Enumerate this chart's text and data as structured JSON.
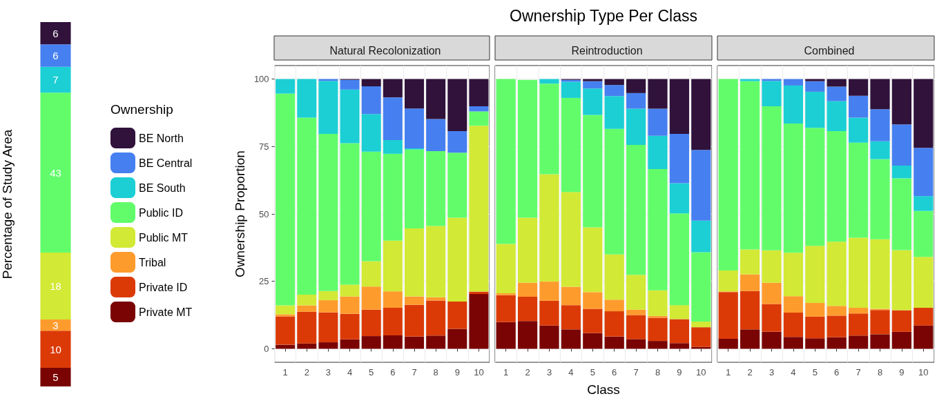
{
  "chart_data": [
    {
      "type": "bar",
      "stacked": true,
      "categories": [
        null
      ],
      "ylabel": "Percentage of Study Area",
      "data_labels": true,
      "tick_labels": false,
      "grid": false,
      "legend": "right",
      "legend_title": "Ownership",
      "series": [
        {
          "name": "Private MT",
          "color": "#7a0403",
          "values": [
            5
          ]
        },
        {
          "name": "Private ID",
          "color": "#db3a07",
          "values": [
            10
          ]
        },
        {
          "name": "Tribal",
          "color": "#fe9b2d",
          "values": [
            3
          ]
        },
        {
          "name": "Public MT",
          "color": "#d2e935",
          "values": [
            18
          ]
        },
        {
          "name": "Public ID",
          "color": "#62fc6b",
          "values": [
            43
          ]
        },
        {
          "name": "BE South",
          "color": "#1bcfd4",
          "values": [
            7
          ]
        },
        {
          "name": "BE Central",
          "color": "#4680f0",
          "values": [
            6
          ]
        },
        {
          "name": "BE North",
          "color": "#30123b",
          "values": [
            6
          ]
        }
      ]
    },
    {
      "type": "bar",
      "stacked": true,
      "subtitle": "Natural Recolonization",
      "ylabel": "Ownership Proportion",
      "categories": [
        "1",
        "2",
        "3",
        "4",
        "5",
        "6",
        "7",
        "8",
        "9",
        "10"
      ],
      "ylim": [
        -5,
        105
      ],
      "yticks": [
        0,
        25,
        50,
        75,
        100
      ],
      "grid": true,
      "series": [
        {
          "color": "#7a0403",
          "values": [
            1.5,
            2.0,
            2.4,
            3.5,
            4.7,
            5.0,
            4.5,
            4.9,
            7.4,
            20.3
          ]
        },
        {
          "color": "#db3a07",
          "values": [
            10.5,
            11.7,
            11.1,
            9.5,
            9.8,
            10.2,
            11.8,
            13.0,
            10.1,
            0.9
          ]
        },
        {
          "color": "#fe9b2d",
          "values": [
            0.8,
            2.4,
            4.5,
            6.4,
            8.6,
            6.1,
            3.1,
            1.2,
            0,
            0
          ]
        },
        {
          "color": "#d2e935",
          "values": [
            3.3,
            4.0,
            3.4,
            4.4,
            9.4,
            18.8,
            25.2,
            26.4,
            31.1,
            61.5
          ]
        },
        {
          "color": "#62fc6b",
          "values": [
            78.5,
            65.6,
            58.3,
            52.4,
            40.6,
            32.2,
            29.3,
            27.8,
            24.1,
            5.3
          ]
        },
        {
          "color": "#1bcfd4",
          "values": [
            5.4,
            14.3,
            19.6,
            19.9,
            13.9,
            5.1,
            0.4,
            0,
            0,
            0
          ]
        },
        {
          "color": "#4680f0",
          "values": [
            0,
            0,
            0.7,
            3.6,
            10.3,
            15.8,
            14.8,
            11.9,
            8.0,
            1.9
          ]
        },
        {
          "color": "#30123b",
          "values": [
            0,
            0,
            0,
            0.3,
            2.7,
            6.8,
            10.9,
            14.8,
            19.3,
            10.1
          ]
        }
      ]
    },
    {
      "type": "bar",
      "stacked": true,
      "title": "Ownership Type Per Class",
      "subtitle": "Reintroduction",
      "xlabel": "Class",
      "categories": [
        "1",
        "2",
        "3",
        "4",
        "5",
        "6",
        "7",
        "8",
        "9",
        "10"
      ],
      "ylim": [
        -5,
        105
      ],
      "yticks": [
        0,
        25,
        50,
        75,
        100
      ],
      "grid": true,
      "tick_labels": "x",
      "series": [
        {
          "color": "#7a0403",
          "values": [
            9.9,
            10.3,
            8.6,
            7.2,
            5.8,
            4.5,
            3.6,
            2.9,
            2.1,
            0.7
          ]
        },
        {
          "color": "#db3a07",
          "values": [
            10.0,
            9.0,
            9.2,
            9.0,
            9.0,
            9.4,
            8.9,
            8.6,
            8.9,
            7.3
          ]
        },
        {
          "color": "#fe9b2d",
          "values": [
            0.7,
            5.2,
            7.1,
            6.8,
            6.2,
            4.3,
            2.0,
            0.7,
            0,
            0
          ]
        },
        {
          "color": "#d2e935",
          "values": [
            18.3,
            24.1,
            39.8,
            35.1,
            24.0,
            16.8,
            12.9,
            9.5,
            5.2,
            2.1
          ]
        },
        {
          "color": "#62fc6b",
          "values": [
            61.1,
            51.1,
            33.6,
            34.9,
            41.7,
            46.5,
            48.2,
            44.9,
            34.0,
            25.7
          ]
        },
        {
          "color": "#1bcfd4",
          "values": [
            0,
            null,
            1.7,
            6.0,
            9.8,
            12.2,
            13.4,
            12.4,
            11.2,
            11.7
          ]
        },
        {
          "color": "#4680f0",
          "values": [
            0,
            0,
            0,
            0.7,
            2.7,
            4.1,
            5.8,
            10.0,
            18.3,
            26.2
          ]
        },
        {
          "color": "#30123b",
          "values": [
            0,
            0,
            0,
            0.3,
            0.8,
            2.2,
            5.2,
            11.0,
            20.3,
            26.3
          ]
        }
      ]
    },
    {
      "type": "bar",
      "stacked": true,
      "subtitle": "Combined",
      "categories": [
        "1",
        "2",
        "3",
        "4",
        "5",
        "6",
        "7",
        "8",
        "9",
        "10"
      ],
      "ylim": [
        -5,
        105
      ],
      "yticks": [
        0,
        25,
        50,
        75,
        100
      ],
      "grid": true,
      "tick_labels": "x",
      "series": [
        {
          "color": "#7a0403",
          "values": [
            3.7,
            7.2,
            6.3,
            4.4,
            3.9,
            4.3,
            4.9,
            5.4,
            6.3,
            8.6
          ]
        },
        {
          "color": "#db3a07",
          "values": [
            17.3,
            14.2,
            10.3,
            9.0,
            8.0,
            8.0,
            8.2,
            9.0,
            8.0,
            6.6
          ]
        },
        {
          "color": "#fe9b2d",
          "values": [
            0.3,
            6.2,
            7.9,
            6.1,
            5.1,
            3.6,
            2.1,
            0.4,
            0,
            0
          ]
        },
        {
          "color": "#d2e935",
          "values": [
            7.7,
            9.2,
            12.0,
            16.1,
            21.2,
            23.8,
            26.0,
            25.8,
            22.3,
            18.9
          ]
        },
        {
          "color": "#62fc6b",
          "values": [
            71.0,
            62.4,
            53.4,
            47.9,
            43.7,
            41.0,
            35.2,
            29.7,
            26.6,
            17.0
          ]
        },
        {
          "color": "#1bcfd4",
          "values": [
            0,
            0.8,
            9.4,
            14.1,
            13.4,
            11.1,
            9.3,
            6.6,
            4.7,
            5.5
          ]
        },
        {
          "color": "#4680f0",
          "values": [
            0,
            0,
            0.7,
            2.4,
            3.9,
            5.4,
            8.1,
            11.9,
            15.3,
            17.9
          ]
        },
        {
          "color": "#30123b",
          "values": [
            0,
            0,
            0,
            0,
            0.8,
            2.8,
            6.2,
            11.2,
            16.8,
            25.5
          ]
        }
      ]
    }
  ]
}
